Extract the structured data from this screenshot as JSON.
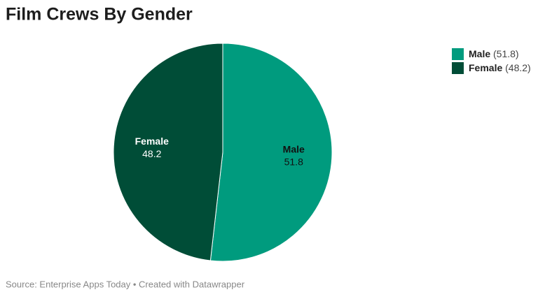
{
  "chart_data": {
    "type": "pie",
    "title": "Film Crews By Gender",
    "categories": [
      "Male",
      "Female"
    ],
    "values": [
      51.8,
      48.2
    ],
    "colors": [
      "#009b7e",
      "#004d37"
    ],
    "legend_labels": [
      "(51.8)",
      "(48.2)"
    ],
    "legend": "top-right",
    "source": "Source: Enterprise Apps Today • Created with Datawrapper"
  }
}
